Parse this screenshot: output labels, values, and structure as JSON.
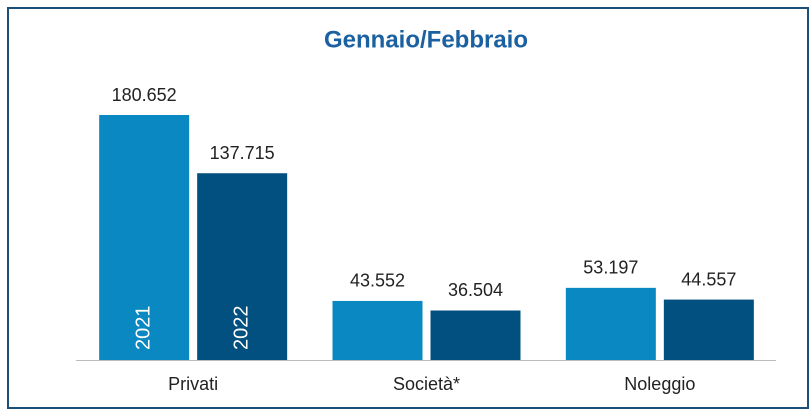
{
  "chart_data": {
    "type": "bar",
    "title": "Gennaio/Febbraio",
    "categories": [
      "Privati",
      "Società*",
      "Noleggio"
    ],
    "series": [
      {
        "name": "2021",
        "color": "#0a88c2",
        "values": [
          180652,
          43552,
          53197
        ],
        "value_labels": [
          "180.652",
          "43.552",
          "53.197"
        ]
      },
      {
        "name": "2022",
        "color": "#02507f",
        "values": [
          137715,
          36504,
          44557
        ],
        "value_labels": [
          "137.715",
          "36.504",
          "44.557"
        ]
      }
    ]
  }
}
